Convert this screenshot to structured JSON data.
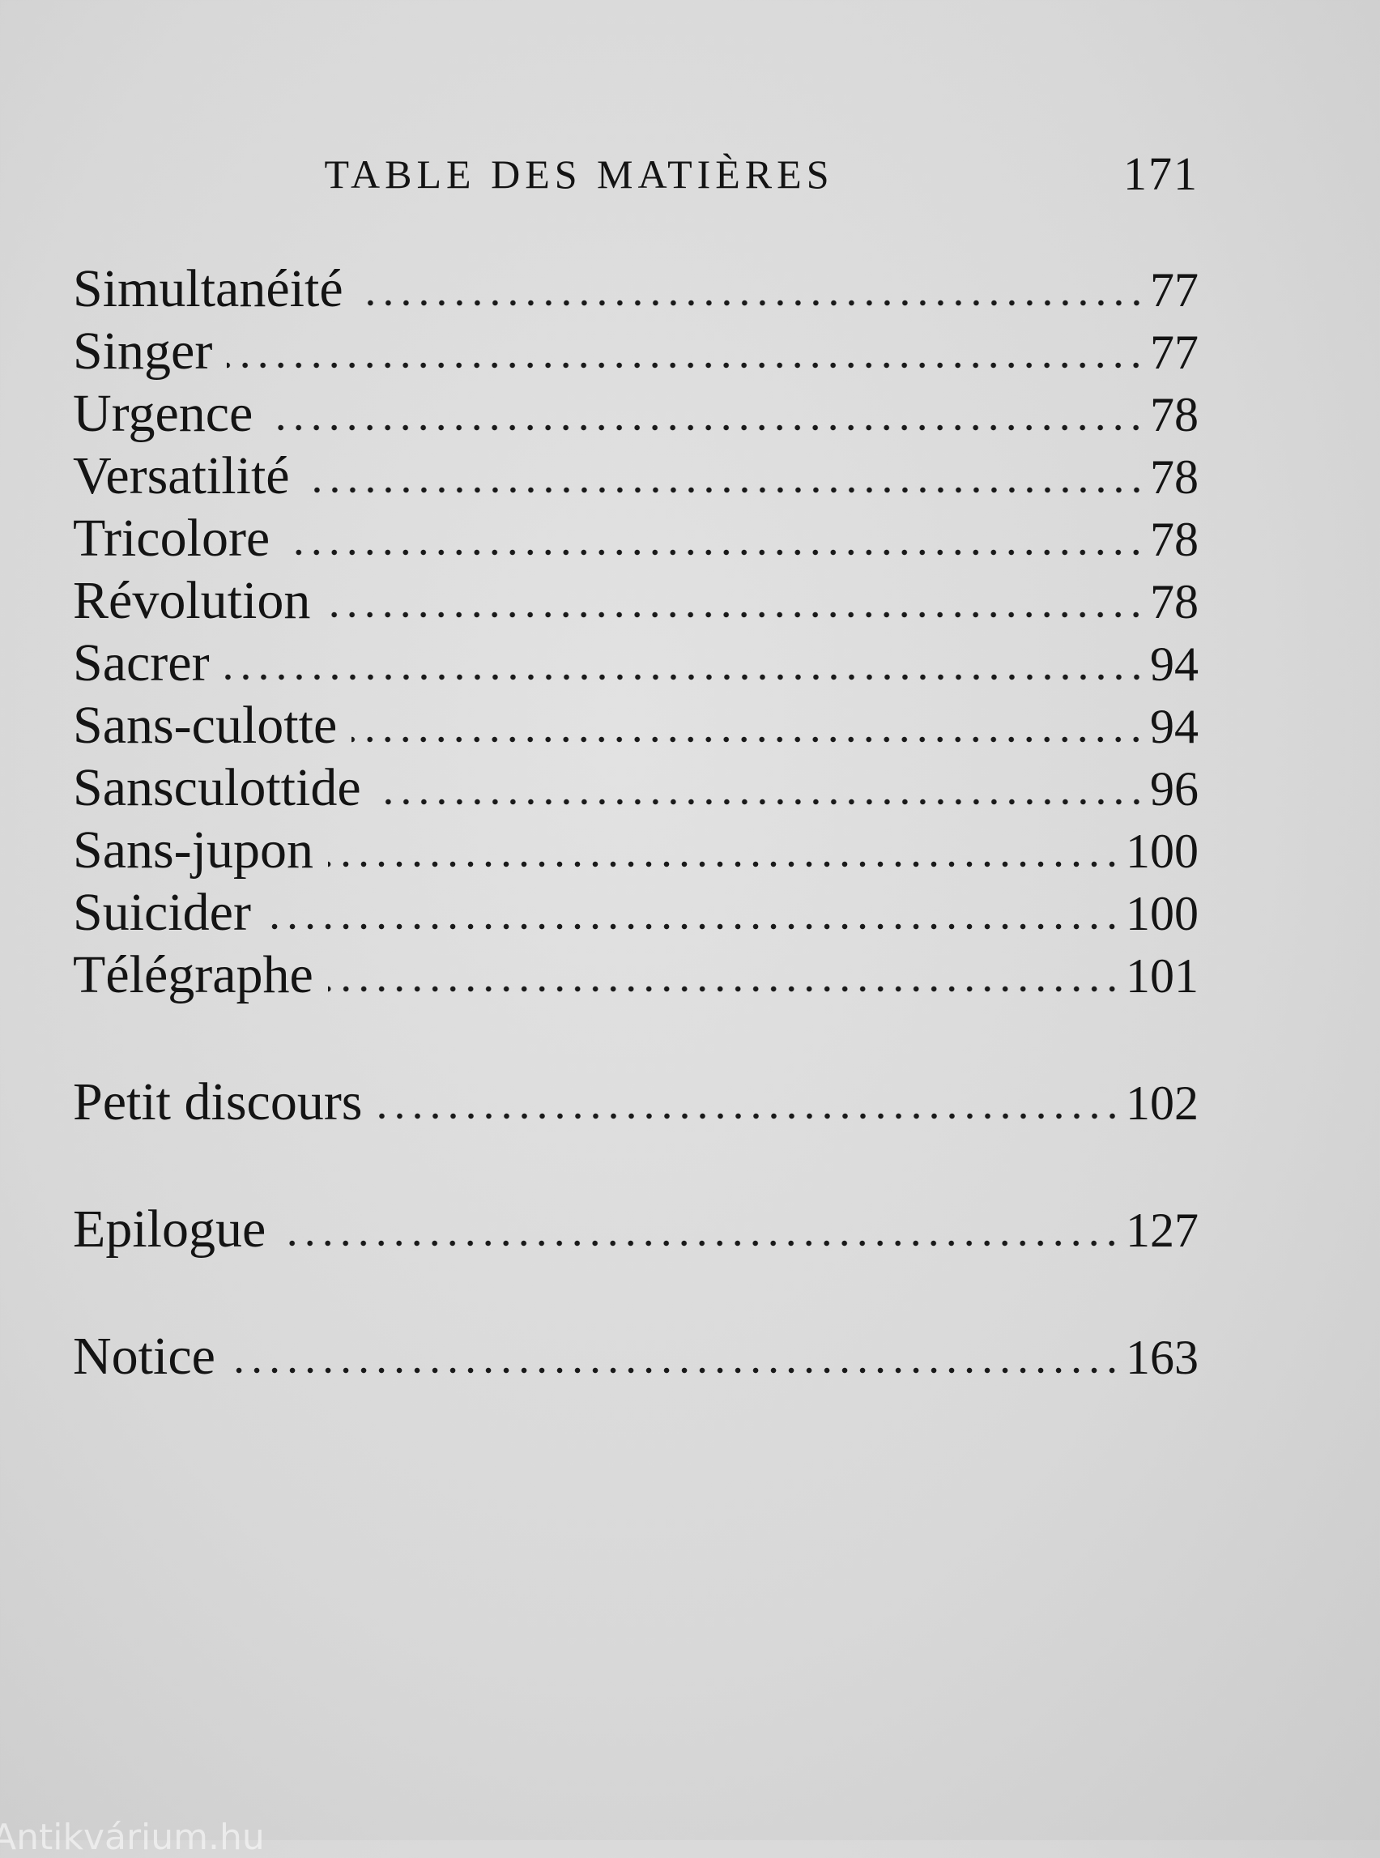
{
  "header": {
    "title": "TABLE DES MATIÈRES",
    "page": "171"
  },
  "groups": [
    [
      {
        "label": "Simultanéité",
        "page": 77
      },
      {
        "label": "Singer",
        "page": 77
      },
      {
        "label": "Urgence",
        "page": 78
      },
      {
        "label": "Versatilité",
        "page": 78
      },
      {
        "label": "Tricolore",
        "page": 78
      },
      {
        "label": "Révolution",
        "page": 78
      },
      {
        "label": "Sacrer",
        "page": 94
      },
      {
        "label": "Sans-culotte",
        "page": 94
      },
      {
        "label": "Sansculottide",
        "page": 96
      },
      {
        "label": "Sans-jupon",
        "page": 100
      },
      {
        "label": "Suicider",
        "page": 100
      },
      {
        "label": "Télégraphe",
        "page": 101
      }
    ],
    [
      {
        "label": "Petit discours",
        "page": 102
      }
    ],
    [
      {
        "label": "Epilogue",
        "page": 127
      }
    ],
    [
      {
        "label": "Notice",
        "page": 163
      }
    ]
  ],
  "watermark": "Antikvárium.hu"
}
